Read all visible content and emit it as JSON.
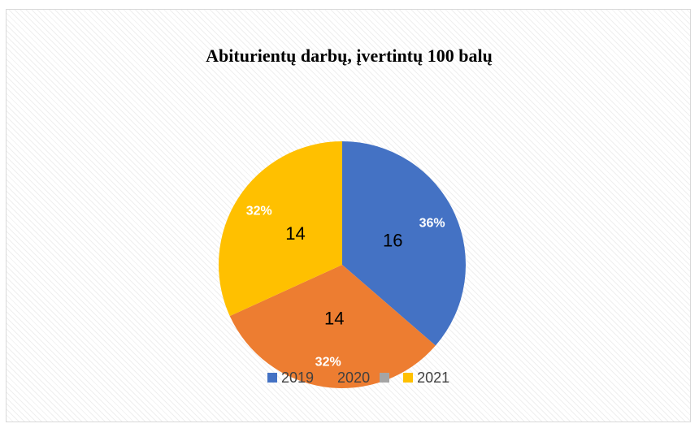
{
  "chart_data": {
    "type": "pie",
    "title": "Abiturientų darbų, įvertintų 100 balų",
    "categories": [
      "2019",
      "2020",
      "",
      "2021"
    ],
    "values": [
      16,
      14,
      0,
      14
    ],
    "percent_labels": [
      "36%",
      "32%",
      "",
      "32%"
    ],
    "colors": [
      "#4472c4",
      "#ed7d31",
      "#a5a5a5",
      "#ffc000"
    ],
    "legend_placement": "bottom"
  }
}
